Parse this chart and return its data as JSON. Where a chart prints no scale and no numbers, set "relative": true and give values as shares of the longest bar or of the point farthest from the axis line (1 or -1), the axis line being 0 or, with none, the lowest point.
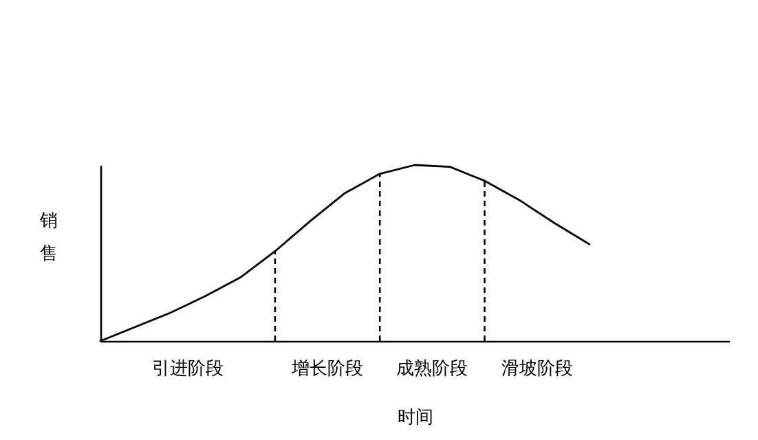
{
  "chart_data": {
    "type": "line",
    "relative": true,
    "xlabel": "时间",
    "ylabel": "销售",
    "categories": [
      null,
      null,
      null,
      null,
      null,
      null,
      null,
      null,
      null,
      null,
      null,
      null,
      null,
      null,
      null
    ],
    "series": [
      {
        "color": "#000000",
        "values": [
          0,
          0.08,
          0.16,
          0.255,
          0.36,
          0.51,
          0.68,
          0.84,
          0.95,
          1,
          0.99,
          0.91,
          0.8,
          0.67,
          0.55
        ]
      }
    ],
    "annotations": [
      "引进阶段",
      "增长阶段",
      "成熟阶段",
      "滑坡阶段"
    ]
  }
}
